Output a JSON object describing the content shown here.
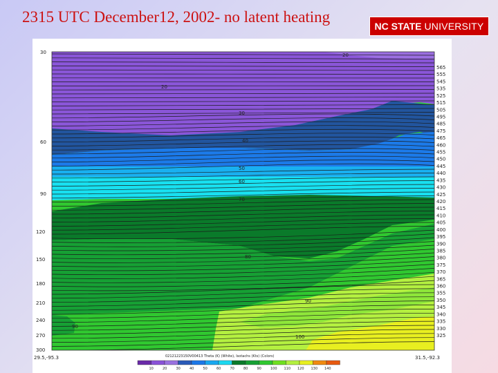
{
  "slide": {
    "title": "2315 UTC December12, 2002- no latent heating"
  },
  "logo": {
    "bold_text": "NC STATE",
    "regular_text": "UNIVERSITY",
    "color": "#cc0000"
  },
  "cross_section": {
    "y_axis_ticks": [
      "30",
      "60",
      "90",
      "120",
      "150",
      "180",
      "210",
      "240",
      "270",
      "300"
    ],
    "theta_labels": [
      "565",
      "555",
      "545",
      "535",
      "525",
      "515",
      "505",
      "495",
      "485",
      "475",
      "465",
      "460",
      "455",
      "450",
      "445",
      "440",
      "435",
      "430",
      "425",
      "420",
      "415",
      "410",
      "405",
      "400",
      "395",
      "390",
      "385",
      "380",
      "375",
      "370",
      "365",
      "360",
      "355",
      "350",
      "345",
      "340",
      "335",
      "330",
      "325"
    ],
    "isotach_labels": [
      {
        "text": "20"
      },
      {
        "text": "20"
      },
      {
        "text": "30"
      },
      {
        "text": "40"
      },
      {
        "text": "50"
      },
      {
        "text": "60"
      },
      {
        "text": "70"
      },
      {
        "text": "80"
      },
      {
        "text": "90"
      },
      {
        "text": "90"
      },
      {
        "text": "100"
      }
    ],
    "left_endpoint": "29.5,-95.3",
    "right_endpoint": "31.5,-92.3",
    "caption": "02121223150V00413 Theta (K) (White), Isotachs (Kts) (Colors)",
    "colorbar": {
      "labels": [
        "10",
        "20",
        "30",
        "40",
        "50",
        "60",
        "70",
        "80",
        "90",
        "100",
        "110",
        "120",
        "130",
        "140"
      ],
      "colors": [
        "#6a2aa8",
        "#8a52d8",
        "#9a72e0",
        "#2a5ab8",
        "#1c78e8",
        "#19a8f0",
        "#1cd8f0",
        "#0a7a2a",
        "#16a034",
        "#30c830",
        "#70e020",
        "#b4f040",
        "#e8ef20",
        "#f08a10",
        "#e85a10"
      ]
    }
  }
}
